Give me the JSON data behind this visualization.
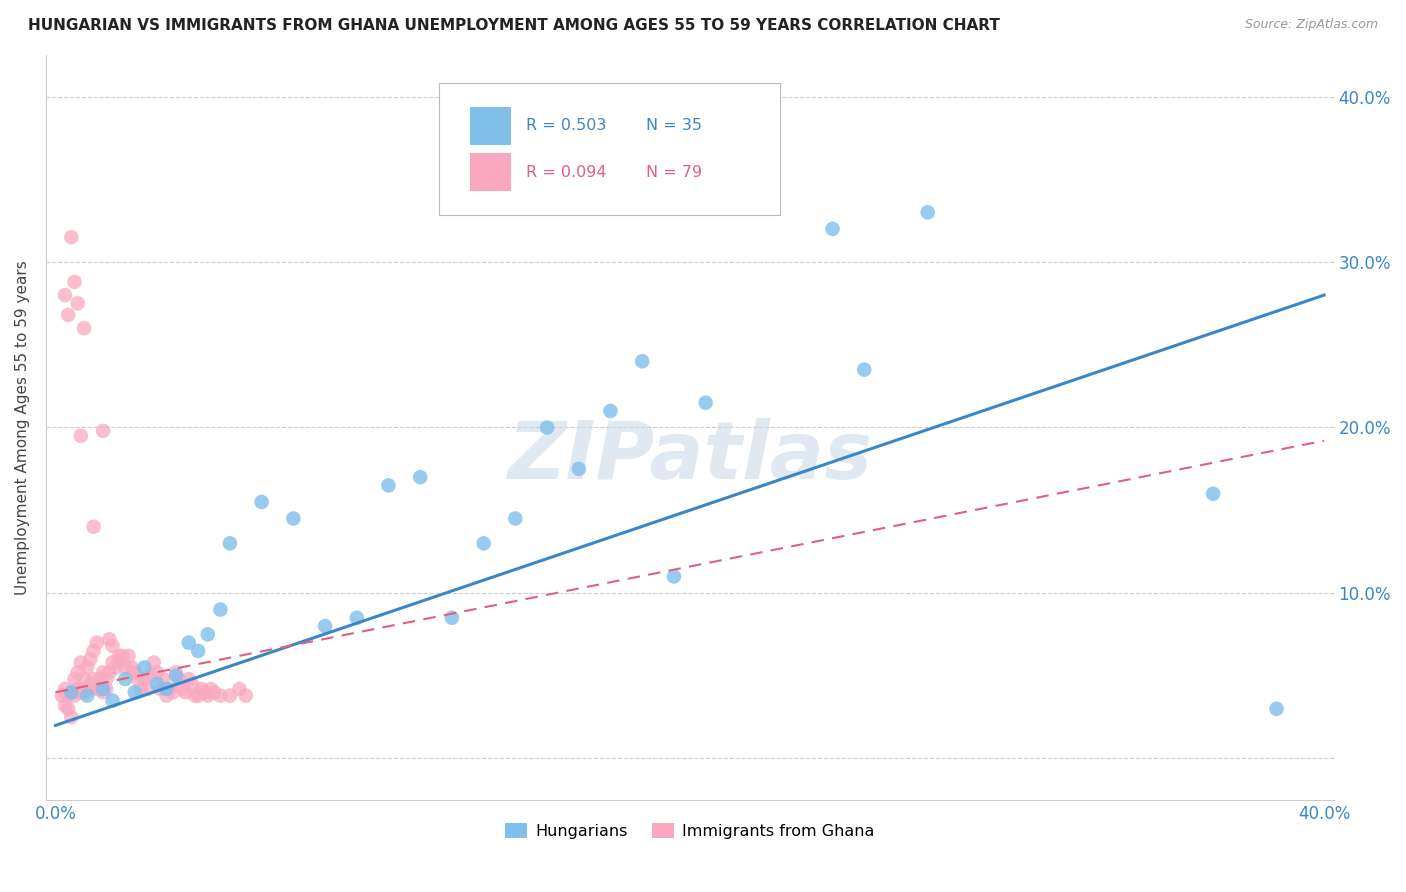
{
  "title": "HUNGARIAN VS IMMIGRANTS FROM GHANA UNEMPLOYMENT AMONG AGES 55 TO 59 YEARS CORRELATION CHART",
  "source": "Source: ZipAtlas.com",
  "ylabel": "Unemployment Among Ages 55 to 59 years",
  "blue_color": "#7fbfea",
  "pink_color": "#f9a8c0",
  "blue_line_color": "#3a87c8",
  "pink_line_color": "#e06080",
  "R_blue": 0.503,
  "N_blue": 35,
  "R_pink": 0.094,
  "N_pink": 79,
  "watermark": "ZIPatlas",
  "blue_x": [
    0.005,
    0.01,
    0.015,
    0.018,
    0.022,
    0.025,
    0.028,
    0.032,
    0.035,
    0.038,
    0.042,
    0.045,
    0.048,
    0.052,
    0.055,
    0.065,
    0.075,
    0.085,
    0.095,
    0.105,
    0.115,
    0.125,
    0.135,
    0.145,
    0.155,
    0.165,
    0.175,
    0.185,
    0.195,
    0.205,
    0.245,
    0.255,
    0.275,
    0.365,
    0.385
  ],
  "blue_y": [
    0.04,
    0.038,
    0.042,
    0.035,
    0.048,
    0.04,
    0.055,
    0.045,
    0.042,
    0.05,
    0.07,
    0.065,
    0.075,
    0.09,
    0.13,
    0.155,
    0.145,
    0.08,
    0.085,
    0.165,
    0.17,
    0.085,
    0.13,
    0.145,
    0.2,
    0.175,
    0.21,
    0.24,
    0.11,
    0.215,
    0.32,
    0.235,
    0.33,
    0.16,
    0.03
  ],
  "pink_x": [
    0.002,
    0.003,
    0.003,
    0.004,
    0.004,
    0.005,
    0.005,
    0.006,
    0.006,
    0.007,
    0.007,
    0.008,
    0.008,
    0.009,
    0.009,
    0.01,
    0.01,
    0.011,
    0.011,
    0.012,
    0.012,
    0.013,
    0.013,
    0.014,
    0.014,
    0.015,
    0.015,
    0.016,
    0.016,
    0.017,
    0.017,
    0.018,
    0.018,
    0.019,
    0.02,
    0.02,
    0.021,
    0.022,
    0.023,
    0.024,
    0.025,
    0.026,
    0.027,
    0.028,
    0.029,
    0.03,
    0.031,
    0.032,
    0.033,
    0.034,
    0.035,
    0.036,
    0.037,
    0.038,
    0.039,
    0.04,
    0.041,
    0.042,
    0.043,
    0.044,
    0.045,
    0.046,
    0.047,
    0.048,
    0.049,
    0.05,
    0.052,
    0.055,
    0.058,
    0.06,
    0.003,
    0.004,
    0.005,
    0.006,
    0.007,
    0.008,
    0.009,
    0.012,
    0.015
  ],
  "pink_y": [
    0.038,
    0.032,
    0.042,
    0.03,
    0.038,
    0.025,
    0.04,
    0.048,
    0.038,
    0.052,
    0.042,
    0.058,
    0.04,
    0.048,
    0.04,
    0.055,
    0.042,
    0.06,
    0.045,
    0.065,
    0.048,
    0.07,
    0.042,
    0.048,
    0.042,
    0.052,
    0.04,
    0.048,
    0.042,
    0.052,
    0.072,
    0.058,
    0.068,
    0.055,
    0.058,
    0.062,
    0.062,
    0.055,
    0.062,
    0.055,
    0.052,
    0.048,
    0.042,
    0.048,
    0.042,
    0.05,
    0.058,
    0.052,
    0.042,
    0.048,
    0.038,
    0.042,
    0.04,
    0.052,
    0.048,
    0.042,
    0.04,
    0.048,
    0.045,
    0.038,
    0.038,
    0.042,
    0.04,
    0.038,
    0.042,
    0.04,
    0.038,
    0.038,
    0.042,
    0.038,
    0.28,
    0.268,
    0.315,
    0.288,
    0.275,
    0.195,
    0.26,
    0.14,
    0.198
  ]
}
